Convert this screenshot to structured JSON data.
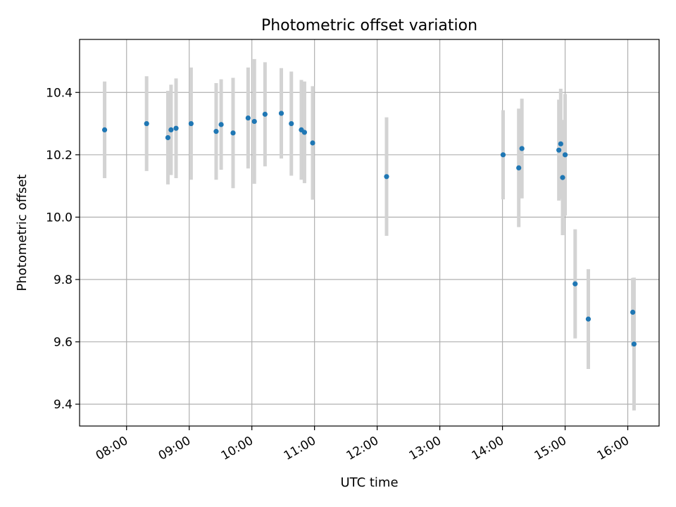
{
  "chart_data": {
    "type": "scatter",
    "title": "Photometric offset variation",
    "xlabel": "UTC time",
    "ylabel": "Photometric offset",
    "x_unit": "hours UTC",
    "xlim": [
      7.25,
      16.5
    ],
    "ylim": [
      9.33,
      10.57
    ],
    "x_ticks": [
      {
        "value": 8,
        "label": "08:00"
      },
      {
        "value": 9,
        "label": "09:00"
      },
      {
        "value": 10,
        "label": "10:00"
      },
      {
        "value": 11,
        "label": "11:00"
      },
      {
        "value": 12,
        "label": "12:00"
      },
      {
        "value": 13,
        "label": "13:00"
      },
      {
        "value": 14,
        "label": "14:00"
      },
      {
        "value": 15,
        "label": "15:00"
      },
      {
        "value": 16,
        "label": "16:00"
      }
    ],
    "y_ticks": [
      {
        "value": 9.4,
        "label": "9.4"
      },
      {
        "value": 9.6,
        "label": "9.6"
      },
      {
        "value": 9.8,
        "label": "9.8"
      },
      {
        "value": 10.0,
        "label": "10.0"
      },
      {
        "value": 10.2,
        "label": "10.2"
      },
      {
        "value": 10.4,
        "label": "10.4"
      }
    ],
    "grid": true,
    "marker_color": "#1f77b4",
    "errorbar_color": "#d3d3d3",
    "points": [
      {
        "x": 7.65,
        "y": 10.28,
        "err": 0.155
      },
      {
        "x": 8.32,
        "y": 10.3,
        "err": 0.152
      },
      {
        "x": 8.66,
        "y": 10.255,
        "err": 0.15
      },
      {
        "x": 8.71,
        "y": 10.28,
        "err": 0.145
      },
      {
        "x": 8.79,
        "y": 10.285,
        "err": 0.16
      },
      {
        "x": 9.03,
        "y": 10.3,
        "err": 0.18
      },
      {
        "x": 9.43,
        "y": 10.275,
        "err": 0.155
      },
      {
        "x": 9.51,
        "y": 10.297,
        "err": 0.145
      },
      {
        "x": 9.7,
        "y": 10.27,
        "err": 0.177
      },
      {
        "x": 9.94,
        "y": 10.318,
        "err": 0.162
      },
      {
        "x": 10.04,
        "y": 10.307,
        "err": 0.2
      },
      {
        "x": 10.21,
        "y": 10.33,
        "err": 0.167
      },
      {
        "x": 10.47,
        "y": 10.333,
        "err": 0.145
      },
      {
        "x": 10.63,
        "y": 10.3,
        "err": 0.167
      },
      {
        "x": 10.79,
        "y": 10.28,
        "err": 0.16
      },
      {
        "x": 10.84,
        "y": 10.272,
        "err": 0.163
      },
      {
        "x": 10.97,
        "y": 10.238,
        "err": 0.182
      },
      {
        "x": 12.15,
        "y": 10.13,
        "err": 0.19
      },
      {
        "x": 14.01,
        "y": 10.2,
        "err": 0.143
      },
      {
        "x": 14.26,
        "y": 10.158,
        "err": 0.19
      },
      {
        "x": 14.31,
        "y": 10.22,
        "err": 0.16
      },
      {
        "x": 14.9,
        "y": 10.215,
        "err": 0.162
      },
      {
        "x": 14.93,
        "y": 10.235,
        "err": 0.177
      },
      {
        "x": 14.96,
        "y": 10.127,
        "err": 0.185
      },
      {
        "x": 15.0,
        "y": 10.2,
        "err": 0.195
      },
      {
        "x": 15.16,
        "y": 9.786,
        "err": 0.175
      },
      {
        "x": 15.37,
        "y": 9.673,
        "err": 0.16
      },
      {
        "x": 16.08,
        "y": 9.695,
        "err": 0.11
      },
      {
        "x": 16.1,
        "y": 9.593,
        "err": 0.213
      }
    ]
  }
}
